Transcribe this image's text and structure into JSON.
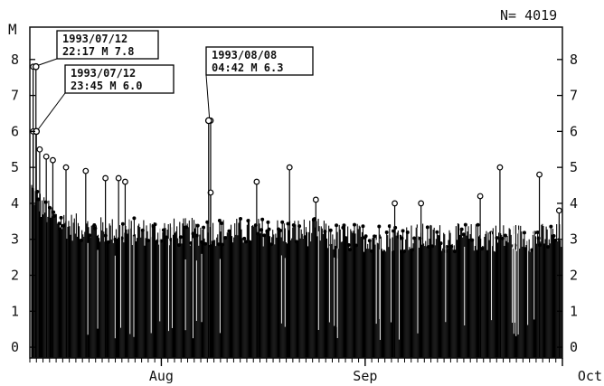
{
  "chart_data": {
    "type": "scatter",
    "style": "stem",
    "ylabel": "M",
    "count_label": "N= 4019",
    "ylim": [
      -0.3,
      8.9
    ],
    "y_ticks": [
      0,
      1,
      2,
      3,
      4,
      5,
      6,
      7,
      8
    ],
    "x_range": [
      "1993-07-12",
      "1993-10-01"
    ],
    "x_ticks": [
      {
        "date": "1993-08-01",
        "label": "Aug"
      },
      {
        "date": "1993-09-01",
        "label": "Sep"
      },
      {
        "date": "1993-10-01",
        "label": "Oct"
      }
    ],
    "grid": false,
    "annotations": [
      {
        "line1": "1993/07/12",
        "line2": "22:17  M 7.8",
        "date": "1993-07-12T22:17",
        "magnitude": 7.8
      },
      {
        "line1": "1993/07/12",
        "line2": "23:45  M 6.0",
        "date": "1993-07-12T23:45",
        "magnitude": 6.0
      },
      {
        "line1": "1993/08/08",
        "line2": "04:42  M 6.3",
        "date": "1993-08-08T04:42",
        "magnitude": 6.3
      }
    ],
    "notable_events": [
      {
        "date": "1993-07-12",
        "magnitude": 7.8
      },
      {
        "date": "1993-07-12",
        "magnitude": 6.0
      },
      {
        "date": "1993-07-13",
        "magnitude": 5.5
      },
      {
        "date": "1993-07-14",
        "magnitude": 5.3
      },
      {
        "date": "1993-07-15",
        "magnitude": 5.2
      },
      {
        "date": "1993-07-17",
        "magnitude": 5.0
      },
      {
        "date": "1993-07-20",
        "magnitude": 4.9
      },
      {
        "date": "1993-07-23",
        "magnitude": 4.7
      },
      {
        "date": "1993-07-25",
        "magnitude": 4.7
      },
      {
        "date": "1993-07-26",
        "magnitude": 4.6
      },
      {
        "date": "1993-08-08",
        "magnitude": 6.3
      },
      {
        "date": "1993-08-08",
        "magnitude": 4.3
      },
      {
        "date": "1993-08-15",
        "magnitude": 4.6
      },
      {
        "date": "1993-08-20",
        "magnitude": 5.0
      },
      {
        "date": "1993-08-24",
        "magnitude": 4.1
      },
      {
        "date": "1993-09-05",
        "magnitude": 4.0
      },
      {
        "date": "1993-09-09",
        "magnitude": 4.0
      },
      {
        "date": "1993-09-18",
        "magnitude": 4.2
      },
      {
        "date": "1993-09-21",
        "magnitude": 5.0
      },
      {
        "date": "1993-09-27",
        "magnitude": 4.8
      },
      {
        "date": "1993-09-30",
        "magnitude": 3.8
      }
    ]
  }
}
